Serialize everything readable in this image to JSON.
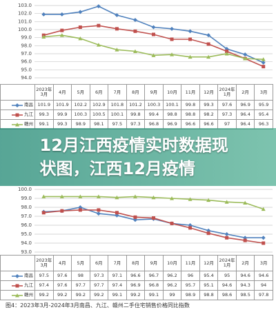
{
  "chart_data": [
    {
      "type": "line",
      "categories": [
        "2023年3月",
        "4月",
        "5月",
        "6月",
        "7月",
        "8月",
        "9月",
        "10月",
        "11月",
        "12月",
        "2024年1月",
        "2月",
        "3月"
      ],
      "ylim": [
        94,
        103
      ],
      "yticks": [
        {
          "value": 94,
          "label": "94.0"
        },
        {
          "value": 95,
          "label": "95.0"
        },
        {
          "value": 96,
          "label": "96.0"
        },
        {
          "value": 97,
          "label": "97.0"
        },
        {
          "value": 98,
          "label": "98.0"
        },
        {
          "value": 99,
          "label": "99.0"
        },
        {
          "value": 100,
          "label": "100.0"
        },
        {
          "value": 101,
          "label": "101.0"
        },
        {
          "value": 102,
          "label": "102.0"
        },
        {
          "value": 103,
          "label": "103.0"
        }
      ],
      "grid": true,
      "series": [
        {
          "name": "南昌",
          "color": "#4f81bd",
          "marker": "diamond",
          "values": [
            101.9,
            101.9,
            102.2,
            102.9,
            101.8,
            101.2,
            100.3,
            100.1,
            99.8,
            99.3,
            97.6,
            96.9,
            95.9
          ]
        },
        {
          "name": "九江",
          "color": "#c0504d",
          "marker": "square",
          "values": [
            99.3,
            99.9,
            100.3,
            100.5,
            100.1,
            99.8,
            99.4,
            98.8,
            98.8,
            98.2,
            97.3,
            96.4,
            95.4
          ]
        },
        {
          "name": "赣州",
          "color": "#9bbb59",
          "marker": "triangle",
          "values": [
            99.1,
            99.3,
            98.9,
            98.1,
            97.5,
            97.3,
            96.8,
            96.9,
            96.6,
            96.6,
            97.0,
            96.4,
            96.3
          ]
        }
      ]
    },
    {
      "type": "line",
      "categories": [
        "2023年3月",
        "4月",
        "5月",
        "6月",
        "7月",
        "8月",
        "9月",
        "10月",
        "11月",
        "12月",
        "2024年1月",
        "2月",
        "3月"
      ],
      "ylim": [
        93,
        100
      ],
      "yticks": [
        {
          "value": 93,
          "label": "93.0"
        },
        {
          "value": 94,
          "label": "94.0"
        },
        {
          "value": 95,
          "label": "95.0"
        },
        {
          "value": 96,
          "label": "96.0"
        },
        {
          "value": 97,
          "label": "97.0"
        },
        {
          "value": 98,
          "label": "98.0"
        },
        {
          "value": 99,
          "label": "99.0"
        },
        {
          "value": 100,
          "label": "100.0"
        }
      ],
      "grid": true,
      "caption": "图4：2023年3月-2024年3月南昌、九江、赣州二手住宅销售价格同比指数",
      "series": [
        {
          "name": "南昌",
          "color": "#4f81bd",
          "marker": "diamond",
          "values": [
            97.5,
            97.6,
            98.0,
            97.3,
            97.1,
            96.6,
            96.7,
            96.2,
            96.0,
            95.4,
            95.0,
            94.6,
            94.6
          ]
        },
        {
          "name": "九江",
          "color": "#c0504d",
          "marker": "square",
          "values": [
            97.4,
            97.6,
            97.7,
            97.7,
            97.4,
            96.9,
            96.8,
            96.2,
            95.7,
            95.1,
            94.6,
            94.3,
            94.0
          ]
        },
        {
          "name": "赣州",
          "color": "#9bbb59",
          "marker": "triangle",
          "values": [
            99.2,
            99.2,
            99.2,
            99.2,
            99.1,
            99.2,
            99.1,
            99.0,
            98.9,
            98.8,
            98.6,
            98.5,
            97.8
          ]
        }
      ]
    }
  ],
  "overlay_title": "12月江西疫情实时数据现状图，江西12月疫情"
}
